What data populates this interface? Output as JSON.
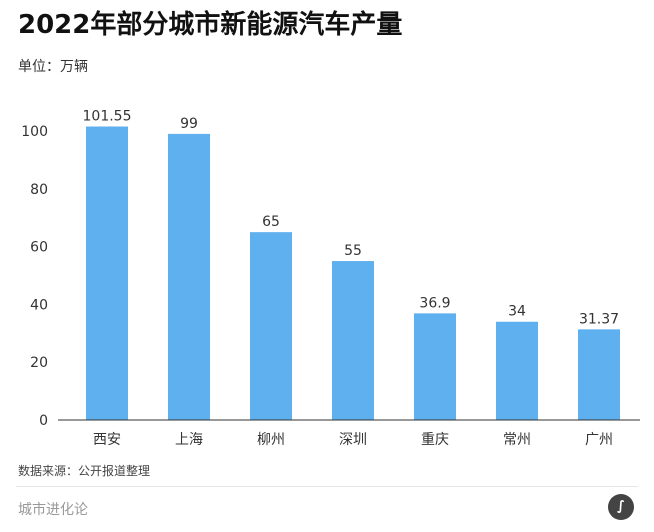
{
  "chart_data": {
    "type": "bar",
    "title": "2022年部分城市新能源汽车产量",
    "unit_label": "单位：万辆",
    "categories": [
      "西安",
      "上海",
      "柳州",
      "深圳",
      "重庆",
      "常州",
      "广州"
    ],
    "values": [
      101.55,
      99,
      65,
      55,
      36.9,
      34,
      31.37
    ],
    "value_labels": [
      "101.55",
      "99",
      "65",
      "55",
      "36.9",
      "34",
      "31.37"
    ],
    "ylim": [
      0,
      100
    ],
    "yticks": [
      0,
      20,
      40,
      60,
      80,
      100
    ],
    "grid": false,
    "bar_color": "#5fb0ee",
    "source": "数据来源：公开报道整理"
  },
  "footer": {
    "brand": "城市进化论"
  }
}
